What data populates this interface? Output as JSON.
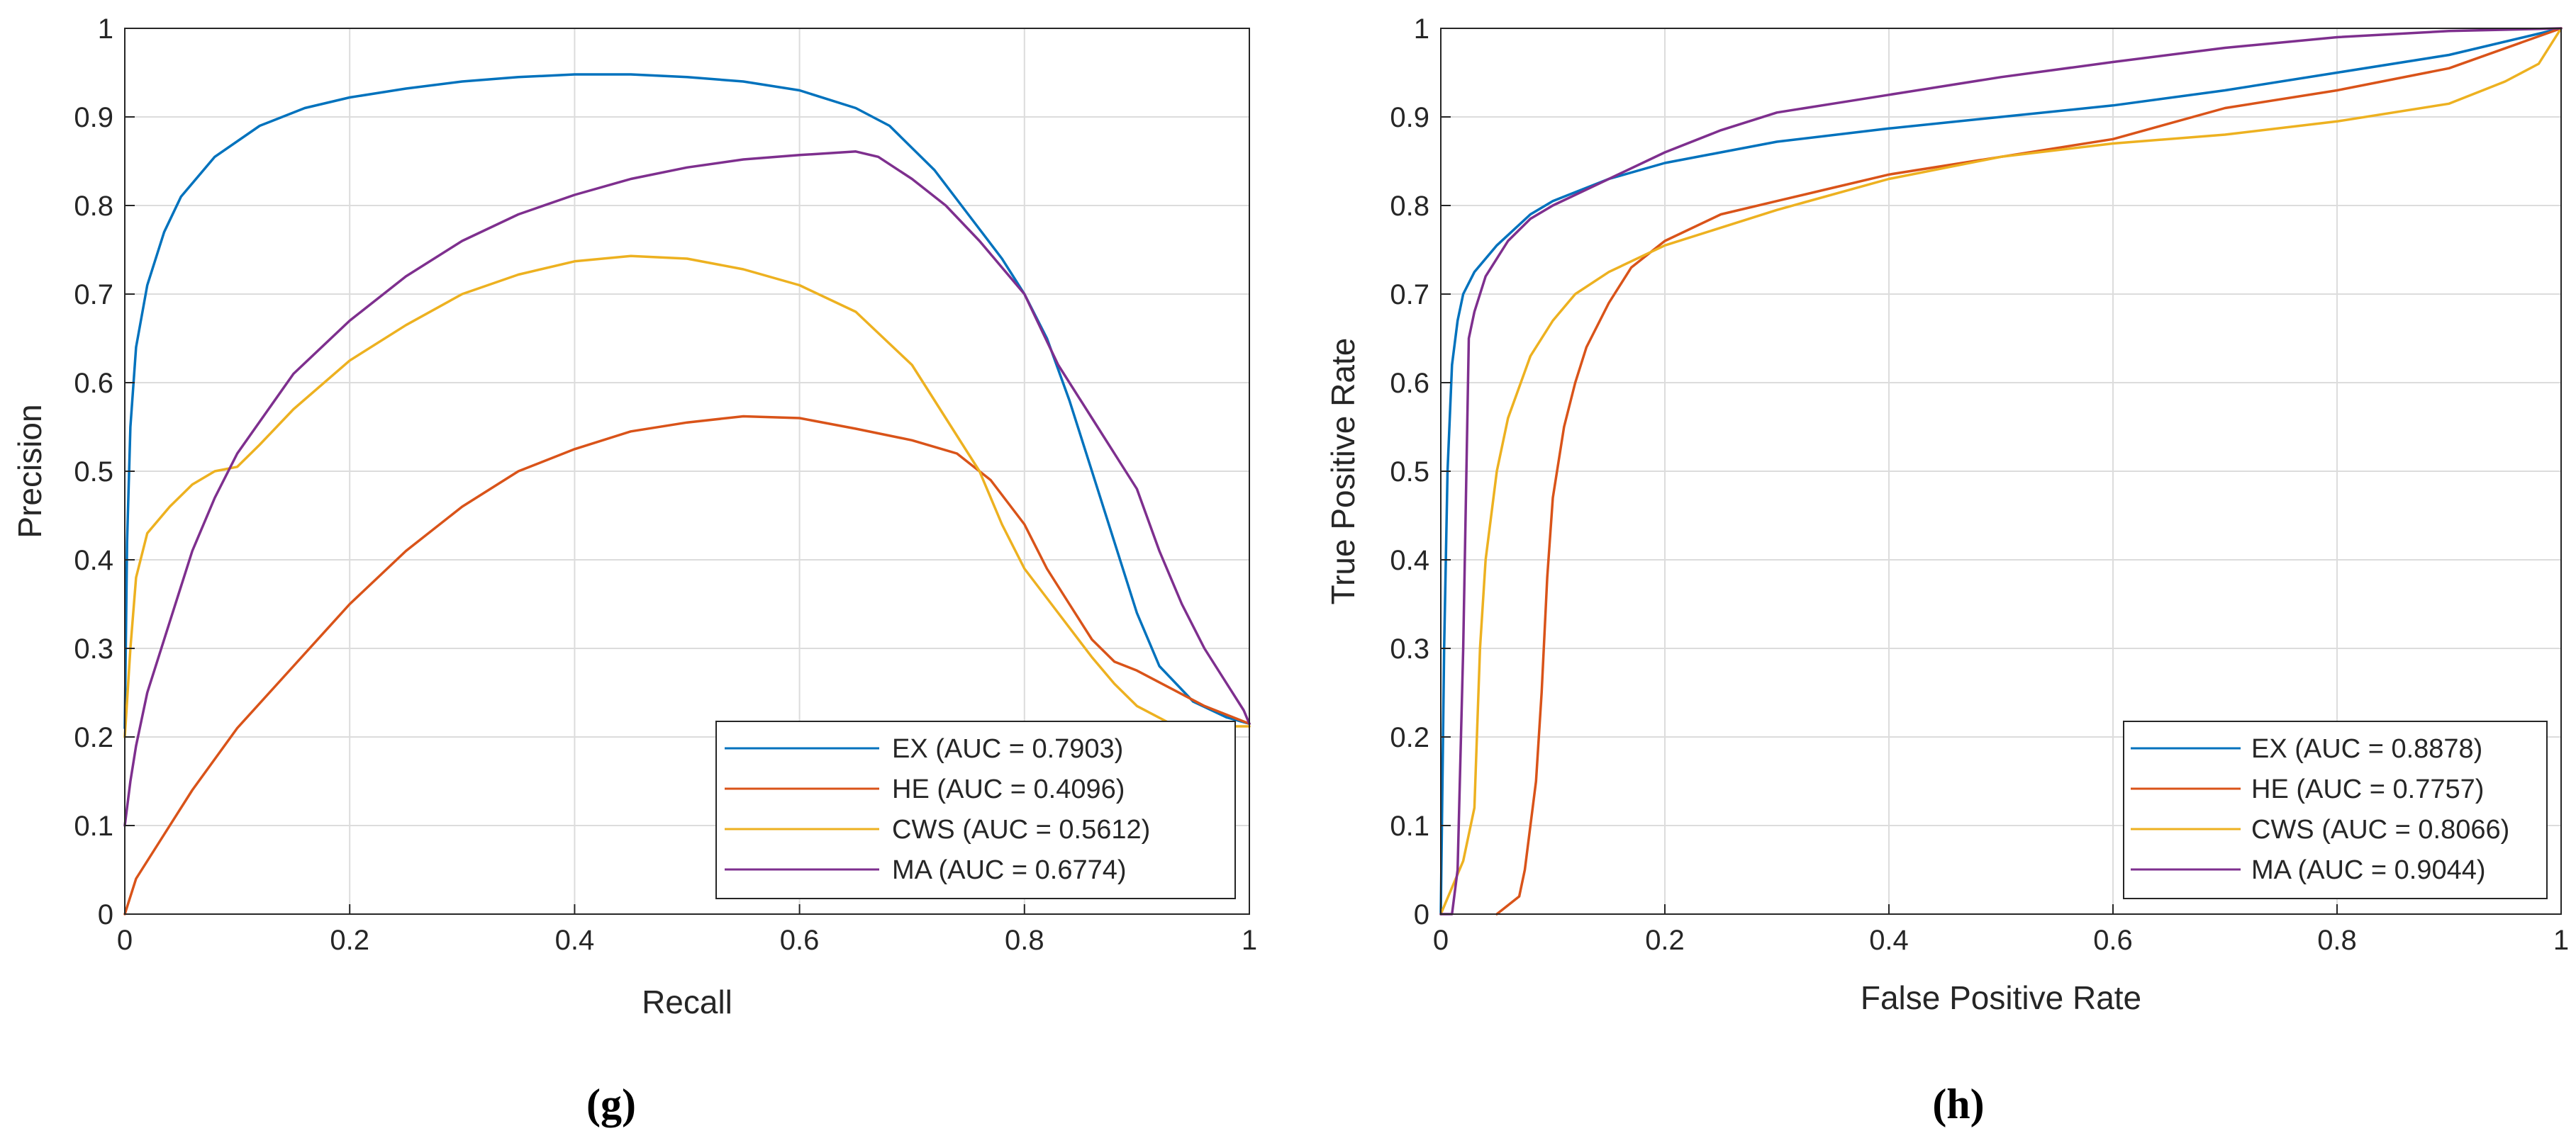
{
  "chart_data": [
    {
      "type": "line",
      "caption": "(g)",
      "xlabel": "Recall",
      "ylabel": "Precision",
      "xlim": [
        0,
        1
      ],
      "ylim": [
        0,
        1
      ],
      "xticks": [
        0,
        0.2,
        0.4,
        0.6,
        0.8,
        1
      ],
      "xtick_labels": [
        "0",
        "0.2",
        "0.4",
        "0.6",
        "0.8",
        "1"
      ],
      "yticks": [
        0,
        0.1,
        0.2,
        0.3,
        0.4,
        0.5,
        0.6,
        0.7,
        0.8,
        0.9,
        1
      ],
      "ytick_labels": [
        "0",
        "0.1",
        "0.2",
        "0.3",
        "0.4",
        "0.5",
        "0.6",
        "0.7",
        "0.8",
        "0.9",
        "1"
      ],
      "grid": true,
      "legend_position": "bottom-right",
      "series": [
        {
          "name": "EX",
          "label": "EX (AUC = 0.7903)",
          "color": "#0072BD",
          "points": [
            [
              0,
              0.21
            ],
            [
              0.002,
              0.42
            ],
            [
              0.005,
              0.55
            ],
            [
              0.01,
              0.64
            ],
            [
              0.02,
              0.71
            ],
            [
              0.035,
              0.77
            ],
            [
              0.05,
              0.81
            ],
            [
              0.08,
              0.855
            ],
            [
              0.12,
              0.89
            ],
            [
              0.16,
              0.91
            ],
            [
              0.2,
              0.922
            ],
            [
              0.25,
              0.932
            ],
            [
              0.3,
              0.94
            ],
            [
              0.35,
              0.945
            ],
            [
              0.4,
              0.948
            ],
            [
              0.45,
              0.948
            ],
            [
              0.5,
              0.945
            ],
            [
              0.55,
              0.94
            ],
            [
              0.6,
              0.93
            ],
            [
              0.65,
              0.91
            ],
            [
              0.68,
              0.89
            ],
            [
              0.72,
              0.84
            ],
            [
              0.75,
              0.79
            ],
            [
              0.78,
              0.74
            ],
            [
              0.8,
              0.7
            ],
            [
              0.82,
              0.65
            ],
            [
              0.84,
              0.58
            ],
            [
              0.86,
              0.5
            ],
            [
              0.88,
              0.42
            ],
            [
              0.9,
              0.34
            ],
            [
              0.92,
              0.28
            ],
            [
              0.95,
              0.24
            ],
            [
              0.98,
              0.222
            ],
            [
              1,
              0.215
            ]
          ]
        },
        {
          "name": "HE",
          "label": "HE (AUC = 0.4096)",
          "color": "#D95319",
          "points": [
            [
              0,
              0.0
            ],
            [
              0.01,
              0.04
            ],
            [
              0.03,
              0.08
            ],
            [
              0.06,
              0.14
            ],
            [
              0.1,
              0.21
            ],
            [
              0.15,
              0.28
            ],
            [
              0.2,
              0.35
            ],
            [
              0.25,
              0.41
            ],
            [
              0.3,
              0.46
            ],
            [
              0.35,
              0.5
            ],
            [
              0.4,
              0.525
            ],
            [
              0.45,
              0.545
            ],
            [
              0.5,
              0.555
            ],
            [
              0.55,
              0.562
            ],
            [
              0.6,
              0.56
            ],
            [
              0.65,
              0.548
            ],
            [
              0.7,
              0.535
            ],
            [
              0.74,
              0.52
            ],
            [
              0.77,
              0.49
            ],
            [
              0.8,
              0.44
            ],
            [
              0.82,
              0.39
            ],
            [
              0.84,
              0.35
            ],
            [
              0.86,
              0.31
            ],
            [
              0.88,
              0.285
            ],
            [
              0.9,
              0.275
            ],
            [
              0.93,
              0.255
            ],
            [
              0.96,
              0.235
            ],
            [
              1,
              0.215
            ]
          ]
        },
        {
          "name": "CWS",
          "label": "CWS (AUC = 0.5612)",
          "color": "#EDB120",
          "points": [
            [
              0,
              0.2
            ],
            [
              0.005,
              0.3
            ],
            [
              0.01,
              0.38
            ],
            [
              0.02,
              0.43
            ],
            [
              0.04,
              0.46
            ],
            [
              0.06,
              0.485
            ],
            [
              0.08,
              0.5
            ],
            [
              0.1,
              0.505
            ],
            [
              0.12,
              0.53
            ],
            [
              0.15,
              0.57
            ],
            [
              0.2,
              0.625
            ],
            [
              0.25,
              0.665
            ],
            [
              0.3,
              0.7
            ],
            [
              0.35,
              0.722
            ],
            [
              0.4,
              0.737
            ],
            [
              0.45,
              0.743
            ],
            [
              0.5,
              0.74
            ],
            [
              0.55,
              0.728
            ],
            [
              0.6,
              0.71
            ],
            [
              0.65,
              0.68
            ],
            [
              0.7,
              0.62
            ],
            [
              0.73,
              0.56
            ],
            [
              0.76,
              0.5
            ],
            [
              0.78,
              0.44
            ],
            [
              0.8,
              0.39
            ],
            [
              0.83,
              0.34
            ],
            [
              0.86,
              0.29
            ],
            [
              0.88,
              0.26
            ],
            [
              0.9,
              0.235
            ],
            [
              0.93,
              0.215
            ],
            [
              0.96,
              0.212
            ],
            [
              1,
              0.212
            ]
          ]
        },
        {
          "name": "MA",
          "label": "MA (AUC = 0.6774)",
          "color": "#7E2F8E",
          "points": [
            [
              0,
              0.1
            ],
            [
              0.005,
              0.15
            ],
            [
              0.01,
              0.19
            ],
            [
              0.02,
              0.25
            ],
            [
              0.04,
              0.33
            ],
            [
              0.06,
              0.41
            ],
            [
              0.08,
              0.47
            ],
            [
              0.1,
              0.52
            ],
            [
              0.15,
              0.61
            ],
            [
              0.2,
              0.67
            ],
            [
              0.25,
              0.72
            ],
            [
              0.3,
              0.76
            ],
            [
              0.35,
              0.79
            ],
            [
              0.4,
              0.812
            ],
            [
              0.45,
              0.83
            ],
            [
              0.5,
              0.843
            ],
            [
              0.55,
              0.852
            ],
            [
              0.6,
              0.857
            ],
            [
              0.65,
              0.861
            ],
            [
              0.67,
              0.855
            ],
            [
              0.7,
              0.83
            ],
            [
              0.73,
              0.8
            ],
            [
              0.76,
              0.76
            ],
            [
              0.78,
              0.73
            ],
            [
              0.8,
              0.7
            ],
            [
              0.83,
              0.62
            ],
            [
              0.86,
              0.56
            ],
            [
              0.88,
              0.52
            ],
            [
              0.9,
              0.48
            ],
            [
              0.92,
              0.41
            ],
            [
              0.94,
              0.35
            ],
            [
              0.96,
              0.3
            ],
            [
              0.98,
              0.26
            ],
            [
              0.995,
              0.23
            ],
            [
              1,
              0.215
            ]
          ]
        }
      ]
    },
    {
      "type": "line",
      "caption": "(h)",
      "xlabel": "False Positive Rate",
      "ylabel": "True Positive Rate",
      "xlim": [
        0,
        1
      ],
      "ylim": [
        0,
        1
      ],
      "xticks": [
        0,
        0.2,
        0.4,
        0.6,
        0.8,
        1
      ],
      "xtick_labels": [
        "0",
        "0.2",
        "0.4",
        "0.6",
        "0.8",
        "1"
      ],
      "yticks": [
        0,
        0.1,
        0.2,
        0.3,
        0.4,
        0.5,
        0.6,
        0.7,
        0.8,
        0.9,
        1
      ],
      "ytick_labels": [
        "0",
        "0.1",
        "0.2",
        "0.3",
        "0.4",
        "0.5",
        "0.6",
        "0.7",
        "0.8",
        "0.9",
        "1"
      ],
      "grid": true,
      "legend_position": "bottom-right",
      "series": [
        {
          "name": "EX",
          "label": "EX (AUC = 0.8878)",
          "color": "#0072BD",
          "points": [
            [
              0,
              0
            ],
            [
              0.003,
              0.3
            ],
            [
              0.006,
              0.5
            ],
            [
              0.01,
              0.62
            ],
            [
              0.015,
              0.67
            ],
            [
              0.02,
              0.7
            ],
            [
              0.03,
              0.725
            ],
            [
              0.05,
              0.755
            ],
            [
              0.08,
              0.79
            ],
            [
              0.1,
              0.805
            ],
            [
              0.15,
              0.83
            ],
            [
              0.2,
              0.848
            ],
            [
              0.25,
              0.86
            ],
            [
              0.3,
              0.872
            ],
            [
              0.4,
              0.887
            ],
            [
              0.5,
              0.9
            ],
            [
              0.6,
              0.913
            ],
            [
              0.7,
              0.93
            ],
            [
              0.8,
              0.95
            ],
            [
              0.9,
              0.97
            ],
            [
              1,
              1
            ]
          ]
        },
        {
          "name": "HE",
          "label": "HE (AUC = 0.7757)",
          "color": "#D95319",
          "points": [
            [
              0.05,
              0
            ],
            [
              0.06,
              0.01
            ],
            [
              0.07,
              0.02
            ],
            [
              0.075,
              0.05
            ],
            [
              0.08,
              0.1
            ],
            [
              0.085,
              0.15
            ],
            [
              0.09,
              0.25
            ],
            [
              0.095,
              0.38
            ],
            [
              0.1,
              0.47
            ],
            [
              0.11,
              0.55
            ],
            [
              0.12,
              0.6
            ],
            [
              0.13,
              0.64
            ],
            [
              0.15,
              0.69
            ],
            [
              0.17,
              0.73
            ],
            [
              0.2,
              0.76
            ],
            [
              0.25,
              0.79
            ],
            [
              0.3,
              0.805
            ],
            [
              0.35,
              0.82
            ],
            [
              0.4,
              0.835
            ],
            [
              0.5,
              0.855
            ],
            [
              0.6,
              0.875
            ],
            [
              0.7,
              0.91
            ],
            [
              0.8,
              0.93
            ],
            [
              0.9,
              0.955
            ],
            [
              1,
              1
            ]
          ]
        },
        {
          "name": "CWS",
          "label": "CWS (AUC = 0.8066)",
          "color": "#EDB120",
          "points": [
            [
              0,
              0
            ],
            [
              0.01,
              0.03
            ],
            [
              0.02,
              0.06
            ],
            [
              0.03,
              0.12
            ],
            [
              0.035,
              0.3
            ],
            [
              0.04,
              0.4
            ],
            [
              0.05,
              0.5
            ],
            [
              0.06,
              0.56
            ],
            [
              0.08,
              0.63
            ],
            [
              0.1,
              0.67
            ],
            [
              0.12,
              0.7
            ],
            [
              0.15,
              0.725
            ],
            [
              0.2,
              0.755
            ],
            [
              0.25,
              0.775
            ],
            [
              0.3,
              0.795
            ],
            [
              0.4,
              0.83
            ],
            [
              0.5,
              0.855
            ],
            [
              0.6,
              0.87
            ],
            [
              0.7,
              0.88
            ],
            [
              0.8,
              0.895
            ],
            [
              0.9,
              0.915
            ],
            [
              0.95,
              0.94
            ],
            [
              0.98,
              0.96
            ],
            [
              1,
              1
            ]
          ]
        },
        {
          "name": "MA",
          "label": "MA (AUC = 0.9044)",
          "color": "#7E2F8E",
          "points": [
            [
              0,
              0
            ],
            [
              0.01,
              0
            ],
            [
              0.015,
              0.05
            ],
            [
              0.02,
              0.3
            ],
            [
              0.025,
              0.65
            ],
            [
              0.03,
              0.68
            ],
            [
              0.04,
              0.72
            ],
            [
              0.06,
              0.76
            ],
            [
              0.08,
              0.785
            ],
            [
              0.1,
              0.8
            ],
            [
              0.15,
              0.83
            ],
            [
              0.2,
              0.86
            ],
            [
              0.25,
              0.885
            ],
            [
              0.3,
              0.905
            ],
            [
              0.35,
              0.915
            ],
            [
              0.4,
              0.925
            ],
            [
              0.5,
              0.945
            ],
            [
              0.6,
              0.962
            ],
            [
              0.7,
              0.978
            ],
            [
              0.8,
              0.99
            ],
            [
              0.9,
              0.997
            ],
            [
              1,
              1
            ]
          ]
        }
      ]
    }
  ]
}
